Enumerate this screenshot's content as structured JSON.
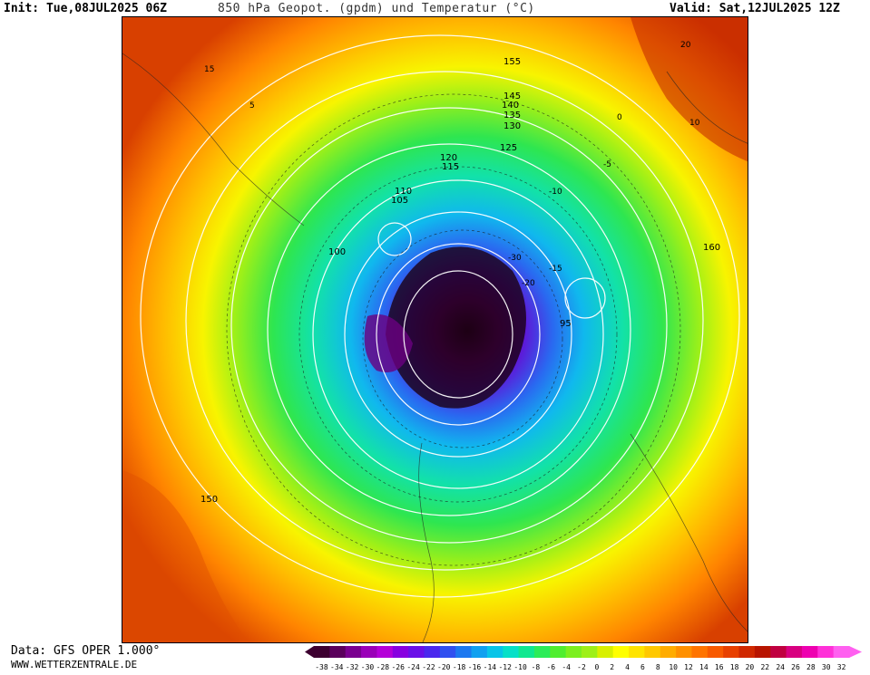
{
  "header": {
    "init": "Init: Tue,08JUL2025 06Z",
    "title": "850 hPa Geopot. (gpdm) und Temperatur (°C)",
    "valid": "Valid: Sat,12JUL2025 12Z"
  },
  "footer": {
    "data_source": "Data: GFS OPER 1.000°",
    "website": "WWW.WETTERZENTRALE.DE"
  },
  "legend": {
    "ticks": [
      "-38",
      "-34",
      "-32",
      "-30",
      "-28",
      "-26",
      "-24",
      "-22",
      "-20",
      "-18",
      "-16",
      "-14",
      "-12",
      "-10",
      "-8",
      "-6",
      "-4",
      "-2",
      "0",
      "2",
      "4",
      "6",
      "8",
      "10",
      "12",
      "14",
      "16",
      "18",
      "20",
      "22",
      "24",
      "26",
      "28",
      "30",
      "32"
    ],
    "colors": [
      "#3d0030",
      "#5a005c",
      "#7a0090",
      "#9a00b8",
      "#b400d8",
      "#8800e0",
      "#6a10e8",
      "#4b28ee",
      "#3050f0",
      "#1c78f0",
      "#10a0f0",
      "#08c4e8",
      "#06e0c8",
      "#10e890",
      "#2cec58",
      "#50ee30",
      "#7cef20",
      "#9ef018",
      "#d8f000",
      "#ffff00",
      "#ffe400",
      "#ffc800",
      "#ffac00",
      "#ff9000",
      "#ff7400",
      "#f85a00",
      "#e84000",
      "#d02800",
      "#b81400",
      "#c00040",
      "#d80080",
      "#ee00b0",
      "#ff30d8",
      "#ff60f0"
    ]
  },
  "map": {
    "geopotential_labels": [
      "155",
      "150",
      "145",
      "140",
      "135",
      "130",
      "125",
      "120",
      "115",
      "110",
      "105",
      "100",
      "95",
      "160"
    ],
    "temperature_labels": [
      "-30",
      "-20",
      "-15",
      "-10",
      "-5",
      "0",
      "5",
      "10",
      "15",
      "20"
    ]
  }
}
